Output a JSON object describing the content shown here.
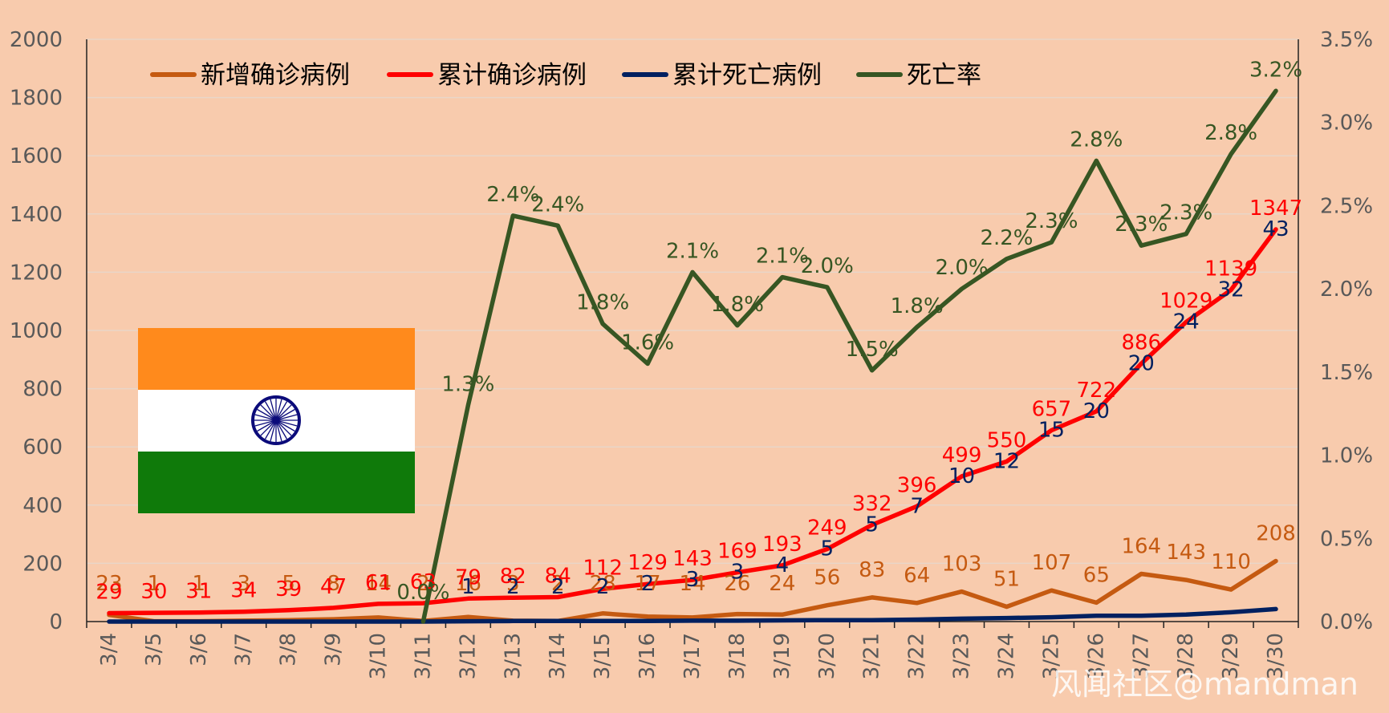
{
  "chart_data": {
    "type": "line",
    "categories": [
      "3/4",
      "3/5",
      "3/6",
      "3/7",
      "3/8",
      "3/9",
      "3/10",
      "3/11",
      "3/12",
      "3/13",
      "3/14",
      "3/15",
      "3/16",
      "3/17",
      "3/18",
      "3/19",
      "3/20",
      "3/21",
      "3/22",
      "3/23",
      "3/24",
      "3/25",
      "3/26",
      "3/27",
      "3/28",
      "3/29",
      "3/30"
    ],
    "y_left_ticks": [
      "0",
      "200",
      "400",
      "600",
      "800",
      "1000",
      "1200",
      "1400",
      "1600",
      "1800",
      "2000"
    ],
    "y_right_ticks": [
      "0.0%",
      "0.5%",
      "1.0%",
      "1.5%",
      "2.0%",
      "2.5%",
      "3.0%",
      "3.5%"
    ],
    "ylim_left": [
      0,
      2000
    ],
    "ylim_right": [
      0,
      3.5
    ],
    "series": [
      {
        "name": "新增确诊病例",
        "axis": "left",
        "color": "#C55A11",
        "values": [
          23,
          1,
          1,
          3,
          5,
          8,
          14,
          2,
          16,
          3,
          2,
          28,
          17,
          14,
          26,
          24,
          56,
          83,
          64,
          103,
          51,
          107,
          65,
          164,
          143,
          110,
          208
        ],
        "labels": [
          "23",
          "1",
          "1",
          "3",
          "5",
          "8",
          "14",
          "2",
          "16",
          "3",
          "2",
          "28",
          "17",
          "14",
          "26",
          "24",
          "56",
          "83",
          "64",
          "103",
          "51",
          "107",
          "65",
          "164",
          "143",
          "110",
          "208"
        ]
      },
      {
        "name": "累计确诊病例",
        "axis": "left",
        "color": "#FF0000",
        "values": [
          29,
          30,
          31,
          34,
          39,
          47,
          61,
          63,
          79,
          82,
          84,
          112,
          129,
          143,
          169,
          193,
          249,
          332,
          396,
          499,
          550,
          657,
          722,
          886,
          1029,
          1139,
          1347
        ],
        "labels": [
          "29",
          "30",
          "31",
          "34",
          "39",
          "47",
          "61",
          "63",
          "79",
          "82",
          "84",
          "112",
          "129",
          "143",
          "169",
          "193",
          "249",
          "332",
          "396",
          "499",
          "550",
          "657",
          "722",
          "886",
          "1029",
          "1139",
          "1347"
        ]
      },
      {
        "name": "累计死亡病例",
        "axis": "left",
        "color": "#002060",
        "values": [
          0,
          0,
          0,
          0,
          0,
          0,
          0,
          0,
          1,
          2,
          2,
          2,
          2,
          3,
          3,
          4,
          5,
          5,
          7,
          10,
          12,
          15,
          20,
          20,
          24,
          32,
          43
        ],
        "labels": [
          "",
          "",
          "",
          "",
          "",
          "",
          "",
          "",
          "1",
          "2",
          "2",
          "2",
          "2",
          "3",
          "3",
          "4",
          "5",
          "5",
          "7",
          "10",
          "12",
          "15",
          "20",
          "20",
          "24",
          "32",
          "43"
        ]
      },
      {
        "name": "死亡率",
        "axis": "right",
        "color": "#375623",
        "values": [
          0,
          0,
          0,
          0,
          0,
          0,
          0,
          0,
          1.3,
          2.44,
          2.38,
          1.79,
          1.55,
          2.1,
          1.78,
          2.07,
          2.01,
          1.51,
          1.77,
          2.0,
          2.18,
          2.28,
          2.77,
          2.26,
          2.33,
          2.81,
          3.19
        ],
        "labels": [
          "",
          "",
          "",
          "",
          "",
          "",
          "",
          "0.0%",
          "1.3%",
          "2.4%",
          "2.4%",
          "1.8%",
          "1.6%",
          "2.1%",
          "1.8%",
          "2.1%",
          "2.0%",
          "1.5%",
          "1.8%",
          "2.0%",
          "2.2%",
          "2.3%",
          "2.8%",
          "2.3%",
          "2.3%",
          "2.8%",
          "3.2%"
        ]
      }
    ],
    "legend": [
      "新增确诊病例",
      "累计确诊病例",
      "累计死亡病例",
      "死亡率"
    ],
    "legend_position": "top-left",
    "grid": true
  },
  "flag": {
    "name": "India flag",
    "colors": {
      "saffron": "#FF8A1C",
      "white": "#FFFFFF",
      "green": "#0F7A0A",
      "chakra": "#0B0B7A"
    }
  },
  "watermark": "风闻社区@mandman"
}
